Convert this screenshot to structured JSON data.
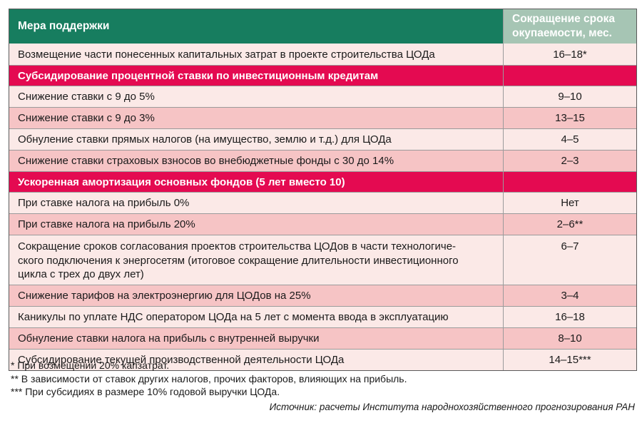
{
  "table": {
    "header": {
      "col1": "Мера поддержки",
      "col2": "Сокращение срока\nокупаемости, мес."
    },
    "rows": [
      {
        "type": "data",
        "shade": "light",
        "first": true,
        "label": "Возмещение части понесенных капитальных затрат в проекте строительства ЦОДа",
        "value": "16–18*"
      },
      {
        "type": "section",
        "label": "Субсидирование процентной ставки по инвестиционным кредитам",
        "value": ""
      },
      {
        "type": "data",
        "shade": "light",
        "label": "Снижение ставки с 9 до 5%",
        "value": "9–10"
      },
      {
        "type": "data",
        "shade": "mid",
        "label": "Снижение ставки с 9 до 3%",
        "value": "13–15"
      },
      {
        "type": "data",
        "shade": "light",
        "label": "Обнуление ставки прямых налогов (на имущество, землю и т.д.) для ЦОДа",
        "value": "4–5"
      },
      {
        "type": "data",
        "shade": "mid",
        "label": "Снижение ставки страховых взносов во внебюджетные фонды с 30 до 14%",
        "value": "2–3"
      },
      {
        "type": "section",
        "label": "Ускоренная амортизация основных фондов (5 лет вместо 10)",
        "value": ""
      },
      {
        "type": "data",
        "shade": "light",
        "label": "При ставке налога на прибыль 0%",
        "value": "Нет"
      },
      {
        "type": "data",
        "shade": "mid",
        "label": "При ставке налога на прибыль 20%",
        "value": "2–6**"
      },
      {
        "type": "data",
        "shade": "light",
        "multiline": true,
        "label": "Сокращение сроков согласования проектов строительства ЦОДов в части технологиче-\nского подключения к энергосетям (итоговое сокращение длительности инвестиционного\nцикла с трех до двух лет)",
        "value": "6–7"
      },
      {
        "type": "data",
        "shade": "mid",
        "label": "Снижение тарифов на электроэнергию для ЦОДов на 25%",
        "value": "3–4"
      },
      {
        "type": "data",
        "shade": "light",
        "label": "Каникулы по уплате НДС оператором ЦОДа на 5 лет с момента ввода в эксплуатацию",
        "value": "16–18"
      },
      {
        "type": "data",
        "shade": "mid",
        "label": "Обнуление ставки налога на прибыль с внутренней выручки",
        "value": "8–10"
      },
      {
        "type": "data",
        "shade": "light",
        "label": "Субсидирование текущей производственной деятельности ЦОДа",
        "value": "14–15***"
      }
    ]
  },
  "footnotes": [
    "* При возмещении 20% капзатрат.",
    "** В зависимости от ставок других налогов, прочих факторов, влияющих на прибыль.",
    "*** При субсидиях в размере 10% годовой выручки ЦОДа."
  ],
  "source": "Источник: расчеты Института народнохозяйственного прогнозирования РАН",
  "colors": {
    "header_green": "#177d5f",
    "header_sage": "#a6c5b4",
    "section_crimson": "#e40a51",
    "row_light_pink": "#fbe9e7",
    "row_mid_pink": "#f6c4c5",
    "grid_line": "#9b9b9b",
    "outer_border": "#5a5a5a"
  }
}
